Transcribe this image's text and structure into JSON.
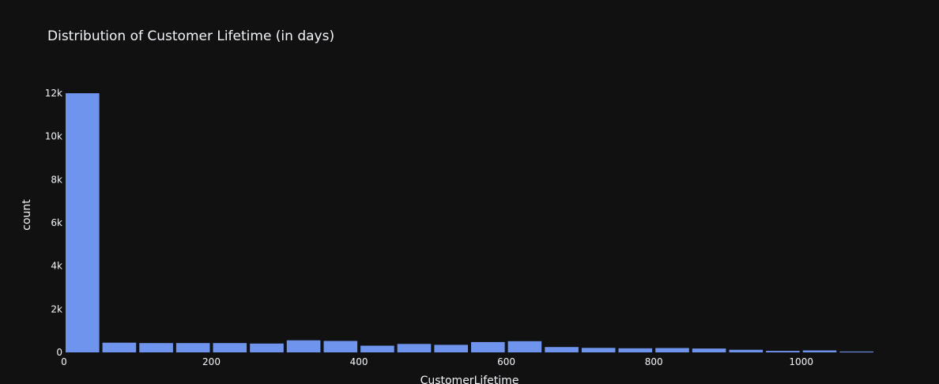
{
  "chart_data": {
    "type": "bar",
    "title": "Distribution of Customer Lifetime (in days)",
    "xlabel": "CustomerLifetime",
    "ylabel": "count",
    "xlim": [
      0,
      1100
    ],
    "ylim": [
      0,
      12000
    ],
    "bin_width": 50,
    "x_ticks": [
      {
        "value": 0,
        "label": "0"
      },
      {
        "value": 200,
        "label": "200"
      },
      {
        "value": 400,
        "label": "400"
      },
      {
        "value": 600,
        "label": "600"
      },
      {
        "value": 800,
        "label": "800"
      },
      {
        "value": 1000,
        "label": "1000"
      }
    ],
    "y_ticks": [
      {
        "value": 0,
        "label": "0"
      },
      {
        "value": 2000,
        "label": "2k"
      },
      {
        "value": 4000,
        "label": "4k"
      },
      {
        "value": 6000,
        "label": "6k"
      },
      {
        "value": 8000,
        "label": "8k"
      },
      {
        "value": 10000,
        "label": "10k"
      },
      {
        "value": 12000,
        "label": "12k"
      }
    ],
    "bin_starts": [
      0,
      50,
      100,
      150,
      200,
      250,
      300,
      350,
      400,
      450,
      500,
      550,
      600,
      650,
      700,
      750,
      800,
      850,
      900,
      950,
      1000,
      1050
    ],
    "values": [
      12000,
      450,
      430,
      430,
      430,
      410,
      560,
      530,
      310,
      390,
      350,
      480,
      520,
      250,
      210,
      190,
      200,
      180,
      120,
      70,
      90,
      40
    ],
    "bar_color": "#6f94ee",
    "background": "#111111",
    "grid": false
  }
}
